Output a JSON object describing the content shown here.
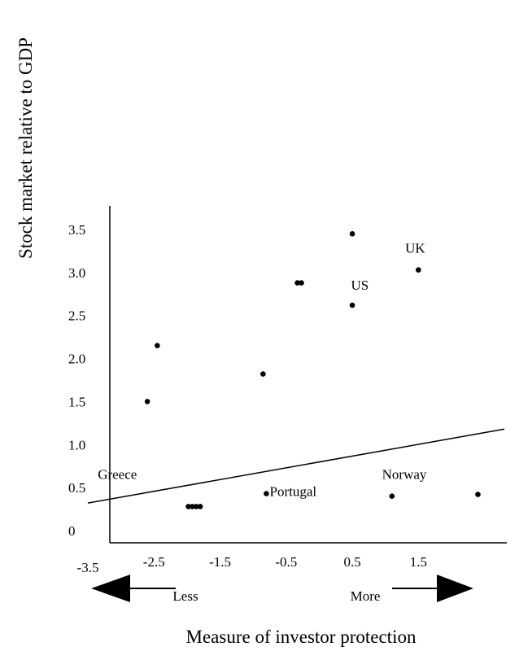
{
  "chart_data": {
    "type": "scatter",
    "title": "",
    "xlabel": "Measure of investor protection",
    "ylabel": "Stock market relative to GDP",
    "xlim": [
      -3.5,
      2.8
    ],
    "ylim": [
      0,
      3.5
    ],
    "x_ticks": [
      {
        "value": -3.5,
        "label": "-3.5"
      },
      {
        "value": -2.5,
        "label": "-2.5"
      },
      {
        "value": -1.5,
        "label": "-1.5"
      },
      {
        "value": -0.5,
        "label": "-0.5"
      },
      {
        "value": 0.5,
        "label": "0.5"
      },
      {
        "value": 1.5,
        "label": "1.5"
      }
    ],
    "y_ticks": [
      {
        "value": 0,
        "label": "0"
      },
      {
        "value": 0.5,
        "label": "0.5"
      },
      {
        "value": 1.0,
        "label": "1.0"
      },
      {
        "value": 1.5,
        "label": "1.5"
      },
      {
        "value": 2.0,
        "label": "2.0"
      },
      {
        "value": 2.5,
        "label": "2.5"
      },
      {
        "value": 3.0,
        "label": "3.0"
      },
      {
        "value": 3.5,
        "label": "3.5"
      }
    ],
    "points": [
      {
        "x": -2.6,
        "y": 1.5
      },
      {
        "x": -2.45,
        "y": 2.15
      },
      {
        "x": -1.98,
        "y": 0.28
      },
      {
        "x": -1.92,
        "y": 0.28
      },
      {
        "x": -1.86,
        "y": 0.28
      },
      {
        "x": -1.8,
        "y": 0.28
      },
      {
        "x": -0.85,
        "y": 1.82
      },
      {
        "x": -0.33,
        "y": 2.88
      },
      {
        "x": -0.27,
        "y": 2.88
      },
      {
        "x": -0.8,
        "y": 0.43,
        "label": "Portugal"
      },
      {
        "x": 0.5,
        "y": 2.62,
        "label": "US"
      },
      {
        "x": 0.5,
        "y": 3.45
      },
      {
        "x": 1.5,
        "y": 3.03,
        "label": "UK"
      },
      {
        "x": 1.1,
        "y": 0.4,
        "label": "Norway"
      },
      {
        "x": 2.4,
        "y": 0.42
      }
    ],
    "point_labels": [
      {
        "text": "Greece",
        "x": -3.35,
        "y": 0.6
      },
      {
        "text": "Portugal",
        "x": -0.75,
        "y": 0.4
      },
      {
        "text": "US",
        "x": 0.48,
        "y": 2.8
      },
      {
        "text": "UK",
        "x": 1.3,
        "y": 3.23
      },
      {
        "text": "Norway",
        "x": 0.95,
        "y": 0.6
      }
    ],
    "trend_line": {
      "x": [
        -3.5,
        2.8
      ],
      "y": [
        0.32,
        1.18
      ]
    },
    "arrows": {
      "left_label": "Less",
      "right_label": "More"
    },
    "grid": false,
    "legend": "none"
  }
}
